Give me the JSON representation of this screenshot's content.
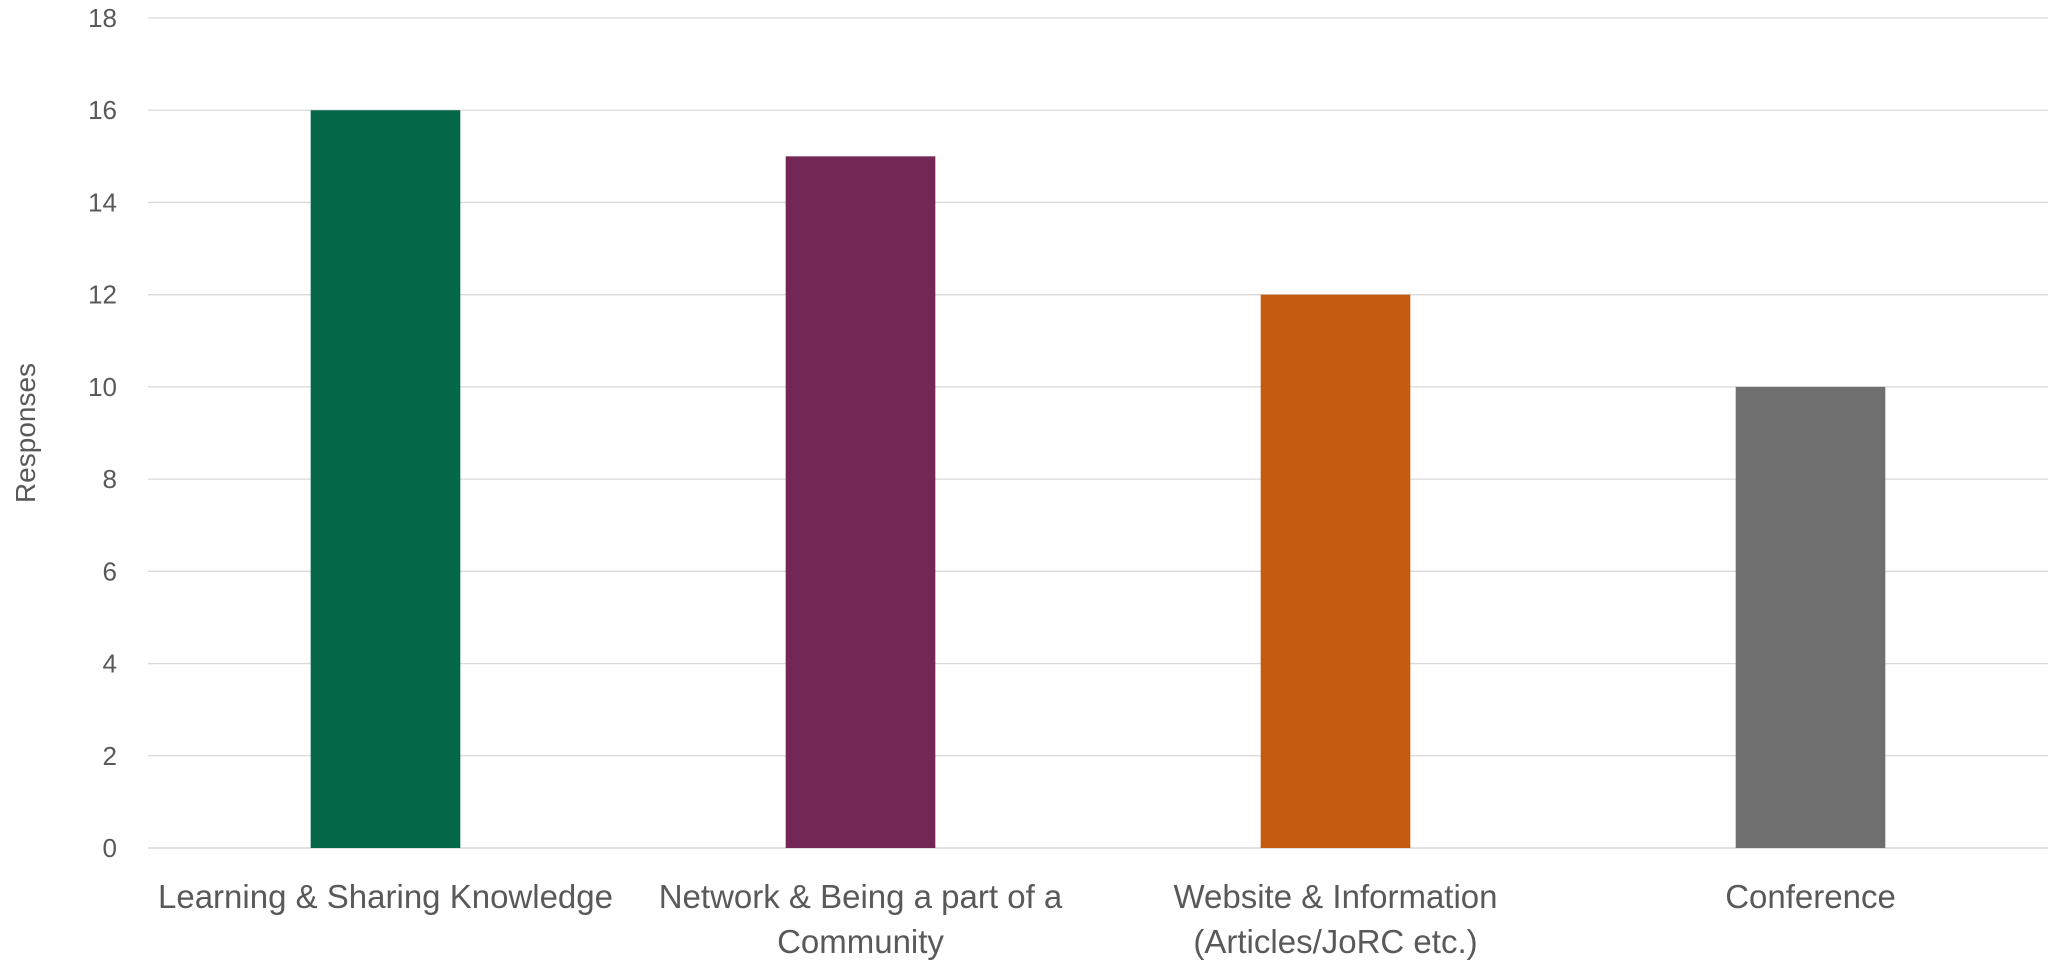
{
  "chart_data": {
    "type": "bar",
    "title": "",
    "xlabel": "",
    "ylabel": "Responses",
    "ylim": [
      0,
      18
    ],
    "yticks": [
      0,
      2,
      4,
      6,
      8,
      10,
      12,
      14,
      16,
      18
    ],
    "grid": true,
    "legend": "none",
    "categories": [
      [
        "Learning & Sharing Knowledge"
      ],
      [
        "Network & Being a part of a",
        "Community"
      ],
      [
        "Website & Information",
        "(Articles/JoRC etc.)"
      ],
      [
        "Conference"
      ]
    ],
    "values": [
      16,
      15,
      12,
      10
    ],
    "colors": [
      "#05674a",
      "#722754",
      "#c55a11",
      "#6f6f6f"
    ]
  }
}
